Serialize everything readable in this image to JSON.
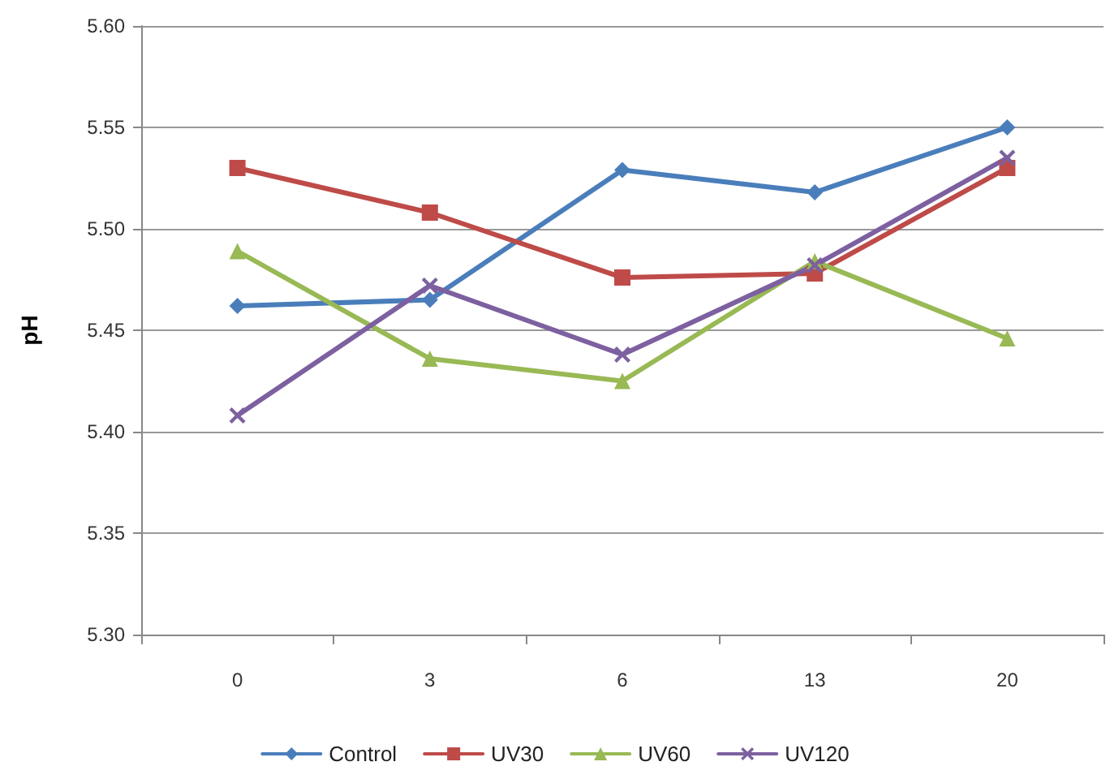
{
  "chart_data": {
    "type": "line",
    "ylabel": "pH",
    "categories": [
      "0",
      "3",
      "6",
      "13",
      "20"
    ],
    "series": [
      {
        "name": "Control",
        "color": "#4a7ebb",
        "marker": "diamond",
        "values": [
          5.462,
          5.465,
          5.529,
          5.518,
          5.55
        ]
      },
      {
        "name": "UV30",
        "color": "#be4b48",
        "marker": "square",
        "values": [
          5.53,
          5.508,
          5.476,
          5.478,
          5.53
        ]
      },
      {
        "name": "UV60",
        "color": "#98b954",
        "marker": "triangle",
        "values": [
          5.489,
          5.436,
          5.425,
          5.484,
          5.446
        ]
      },
      {
        "name": "UV120",
        "color": "#7d60a0",
        "marker": "cross",
        "values": [
          5.408,
          5.472,
          5.438,
          5.482,
          5.535
        ]
      }
    ],
    "ylim": [
      5.3,
      5.6
    ],
    "yticks": [
      {
        "value": 5.3,
        "label": "5.30"
      },
      5.35,
      {
        "value": 5.4,
        "label": "5.40"
      },
      5.45,
      {
        "value": 5.5,
        "label": "5.50"
      },
      5.55,
      {
        "value": 5.6,
        "label": "5.60"
      }
    ],
    "grid": "y",
    "legend": "bottom",
    "line_style": "solid"
  }
}
